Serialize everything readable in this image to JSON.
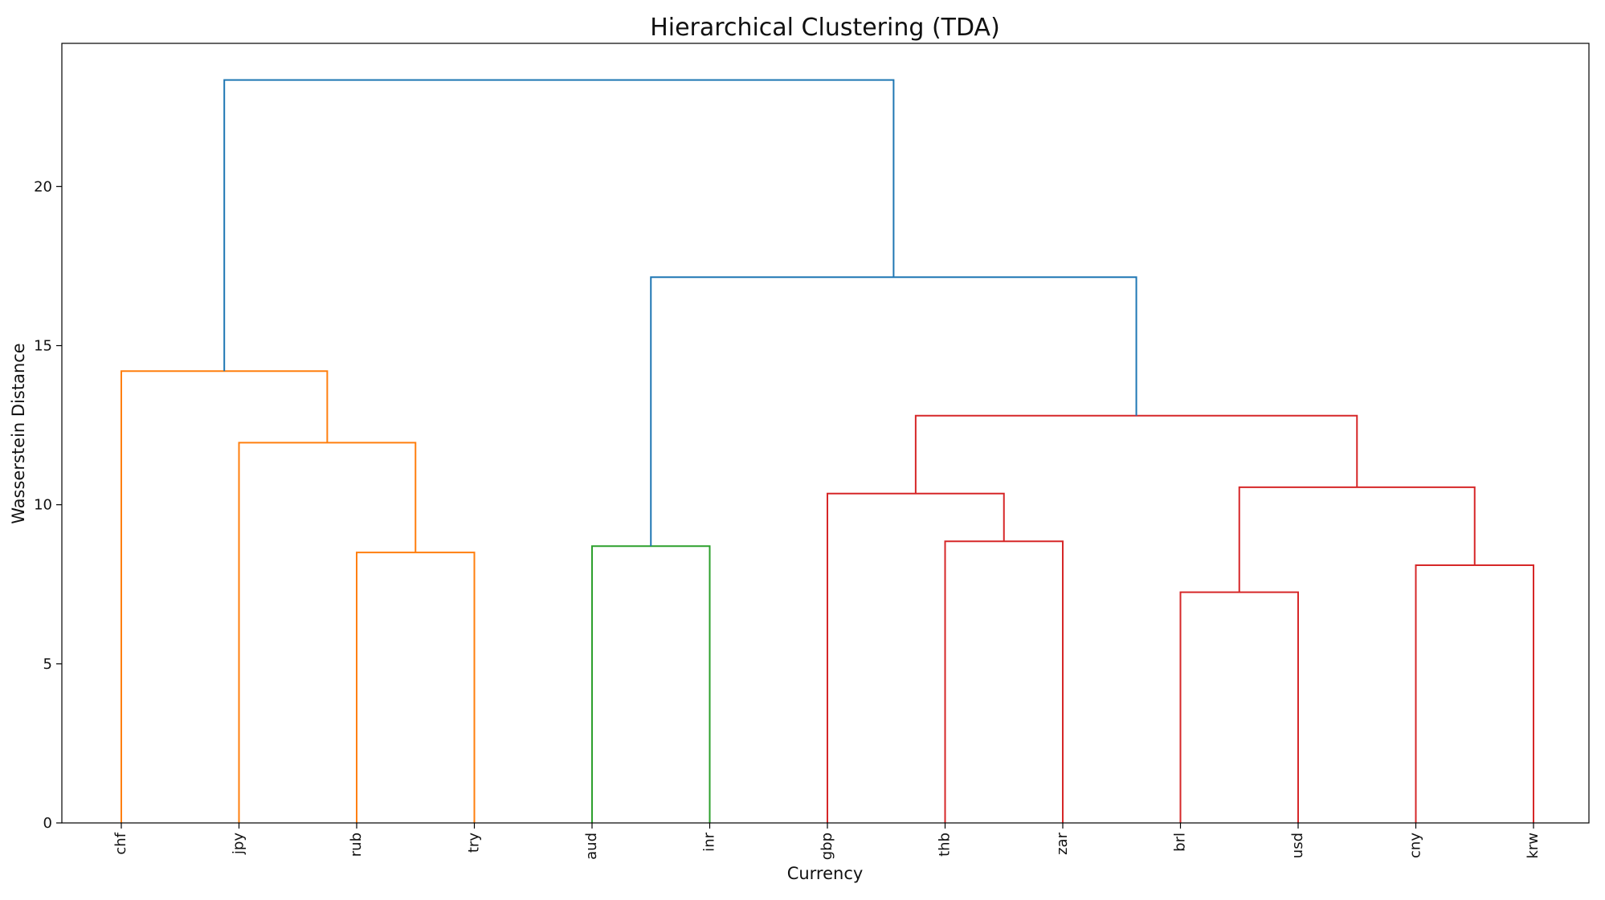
{
  "chart_data": {
    "type": "dendrogram",
    "title": "Hierarchical Clustering (TDA)",
    "xlabel": "Currency",
    "ylabel": "Wasserstein Distance",
    "ylim": [
      0,
      24.5
    ],
    "yticks": [
      0,
      5,
      10,
      15,
      20
    ],
    "grid": false,
    "leaves": [
      "chf",
      "jpy",
      "rub",
      "try",
      "aud",
      "inr",
      "gbp",
      "thb",
      "zar",
      "brl",
      "usd",
      "cny",
      "krw"
    ],
    "links": [
      {
        "left": "brl",
        "right": "usd",
        "height": 7.25,
        "color": "red"
      },
      {
        "left": "cny",
        "right": "krw",
        "height": 8.1,
        "color": "red"
      },
      {
        "left": "rub",
        "right": "try",
        "height": 8.5,
        "color": "orange"
      },
      {
        "left": "aud",
        "right": "inr",
        "height": 8.7,
        "color": "green"
      },
      {
        "left": "thb",
        "right": "zar",
        "height": 8.85,
        "color": "red"
      },
      {
        "left": "gbp",
        "right": "thb+zar",
        "height": 10.35,
        "color": "red"
      },
      {
        "left": "brl+usd",
        "right": "cny+krw",
        "height": 10.55,
        "color": "red"
      },
      {
        "left": "jpy",
        "right": "rub+try",
        "height": 11.95,
        "color": "orange"
      },
      {
        "left": "gbp+thb+zar",
        "right": "brl+usd+cny+krw",
        "height": 12.8,
        "color": "red"
      },
      {
        "left": "chf",
        "right": "jpy+rub+try",
        "height": 14.2,
        "color": "orange"
      },
      {
        "left": "aud+inr",
        "right": "gbp+thb+zar+brl+usd+cny+krw",
        "height": 17.15,
        "color": "blue"
      },
      {
        "left": "chf+jpy+rub+try",
        "right": "aud+inr+gbp+thb+zar+brl+usd+cny+krw",
        "height": 23.35,
        "color": "blue"
      }
    ],
    "colors": {
      "orange": "#ff7f0e",
      "green": "#2ca02c",
      "red": "#d62728",
      "blue": "#1f77b4"
    }
  }
}
